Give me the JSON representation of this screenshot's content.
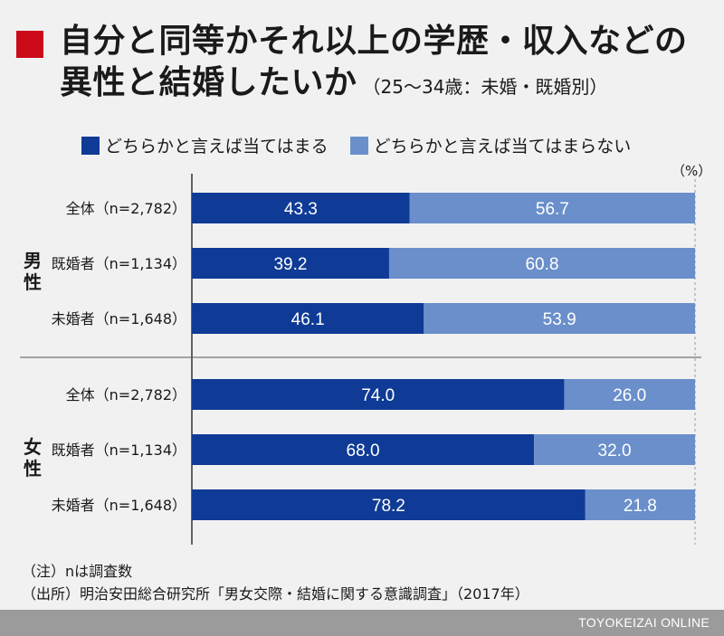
{
  "title": {
    "line1": "自分と同等かそれ以上の学歴・収入などの",
    "line2": "異性と結婚したいか",
    "subtitle": "（25〜34歳：未婚・既婚別）"
  },
  "unit": "（%）",
  "colors": {
    "agree": "#0f3b96",
    "disagree": "#6a8fcb",
    "accent": "#cc0a1a",
    "footer": "#9b9b9b"
  },
  "chart_data": {
    "type": "bar",
    "orientation": "horizontal-stacked-100",
    "legend": [
      "どちらかと言えば当てはまる",
      "どちらかと言えば当てはまらない"
    ],
    "groups": [
      {
        "name": "男性",
        "rows": [
          {
            "label": "全体（n=2,782）",
            "values": [
              43.3,
              56.7
            ]
          },
          {
            "label": "既婚者（n=1,134）",
            "values": [
              39.2,
              60.8
            ]
          },
          {
            "label": "未婚者（n=1,648）",
            "values": [
              46.1,
              53.9
            ]
          }
        ]
      },
      {
        "name": "女性",
        "rows": [
          {
            "label": "全体（n=2,782）",
            "values": [
              74.0,
              26.0
            ]
          },
          {
            "label": "既婚者（n=1,134）",
            "values": [
              68.0,
              32.0
            ]
          },
          {
            "label": "未婚者（n=1,648）",
            "values": [
              78.2,
              21.8
            ]
          }
        ]
      }
    ],
    "xlim": [
      0,
      100
    ]
  },
  "notes": {
    "note": "（注）nは調査数",
    "source": "（出所）明治安田総合研究所「男女交際・結婚に関する意識調査」（2017年）"
  },
  "footer": "TOYOKEIZAI ONLINE"
}
